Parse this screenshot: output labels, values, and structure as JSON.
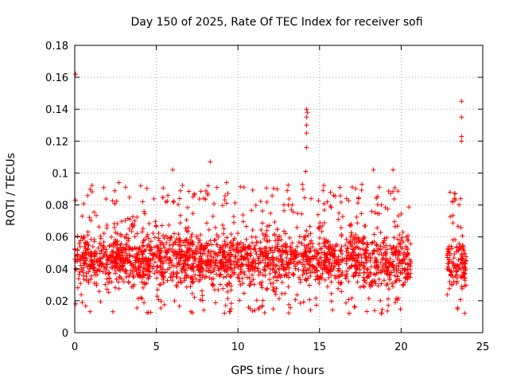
{
  "chart_data": {
    "type": "scatter",
    "title": "Day 150 of 2025, Rate Of TEC Index for receiver sofi",
    "xlabel": "GPS time / hours",
    "ylabel": "ROTI / TECUs",
    "xlim": [
      0,
      25
    ],
    "ylim": [
      0,
      0.18
    ],
    "xticks": [
      0,
      5,
      10,
      15,
      20,
      25
    ],
    "yticks": [
      0,
      0.02,
      0.04,
      0.06,
      0.08,
      0.1,
      0.12,
      0.14,
      0.16,
      0.18
    ],
    "grid": true,
    "marker": "+",
    "series_color": "#ff0000",
    "coverage_hours": [
      [
        0,
        20.6
      ],
      [
        22.8,
        24.0
      ]
    ],
    "typical_range": [
      0.02,
      0.065
    ],
    "notable_points": [
      {
        "x": 0.05,
        "y": 0.162
      },
      {
        "x": 0.05,
        "y": 0.083
      },
      {
        "x": 14.2,
        "y": 0.14
      },
      {
        "x": 14.25,
        "y": 0.138
      },
      {
        "x": 14.2,
        "y": 0.135
      },
      {
        "x": 14.2,
        "y": 0.13
      },
      {
        "x": 14.2,
        "y": 0.125
      },
      {
        "x": 14.2,
        "y": 0.116
      },
      {
        "x": 14.15,
        "y": 0.101
      },
      {
        "x": 23.7,
        "y": 0.145
      },
      {
        "x": 23.7,
        "y": 0.135
      },
      {
        "x": 23.7,
        "y": 0.123
      },
      {
        "x": 23.7,
        "y": 0.12
      },
      {
        "x": 8.3,
        "y": 0.107
      },
      {
        "x": 6.0,
        "y": 0.102
      },
      {
        "x": 18.3,
        "y": 0.102
      },
      {
        "x": 19.5,
        "y": 0.102
      },
      {
        "x": 9.3,
        "y": 0.094
      },
      {
        "x": 2.7,
        "y": 0.094
      },
      {
        "x": 12.4,
        "y": 0.09
      },
      {
        "x": 17.4,
        "y": 0.084
      },
      {
        "x": 23.3,
        "y": 0.087
      },
      {
        "x": 23.0,
        "y": 0.088
      }
    ]
  }
}
